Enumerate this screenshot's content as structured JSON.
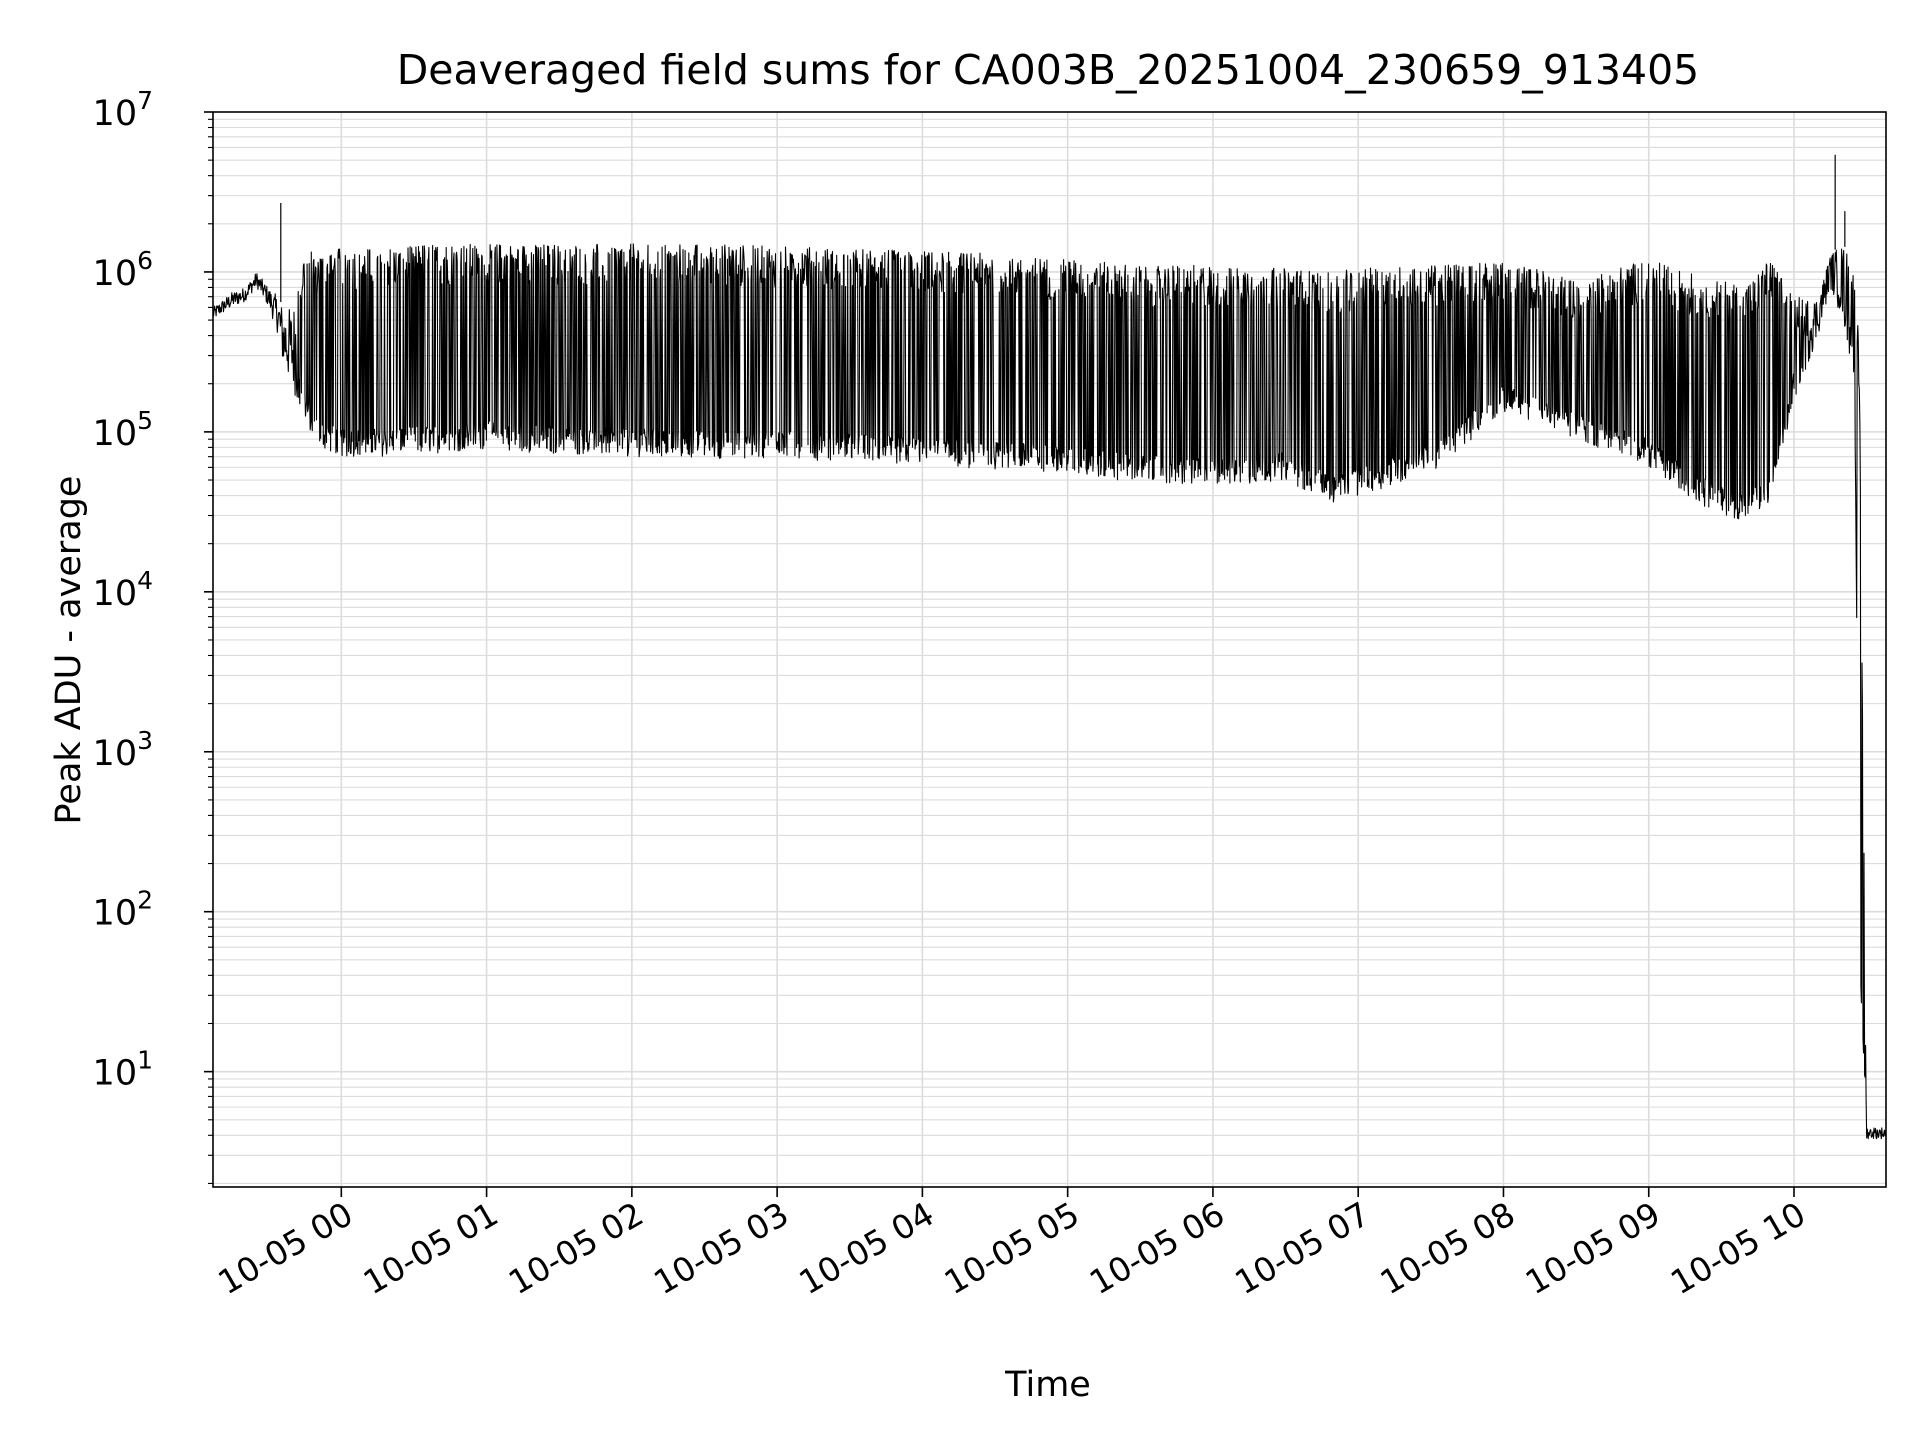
{
  "chart_data": {
    "type": "line",
    "title": "Deaveraged field sums for CA003B_20251004_230659_913405",
    "xlabel": "Time",
    "ylabel": "Peak ADU - average",
    "xscale": "time",
    "yscale": "log",
    "xlim": [
      "2025-10-04 23:07",
      "2025-10-05 10:38"
    ],
    "ylim": [
      1.9,
      10000000
    ],
    "grid": true,
    "legend": "none",
    "line_color": "#000000",
    "x_tick_labels": [
      "10-05 00",
      "10-05 01",
      "10-05 02",
      "10-05 03",
      "10-05 04",
      "10-05 05",
      "10-05 06",
      "10-05 07",
      "10-05 08",
      "10-05 09",
      "10-05 10"
    ],
    "y_tick_labels": [
      {
        "base": "10",
        "exp": "1"
      },
      {
        "base": "10",
        "exp": "2"
      },
      {
        "base": "10",
        "exp": "3"
      },
      {
        "base": "10",
        "exp": "4"
      },
      {
        "base": "10",
        "exp": "5"
      },
      {
        "base": "10",
        "exp": "6"
      },
      {
        "base": "10",
        "exp": "7"
      }
    ],
    "series": [
      {
        "x": [
          "2025-10-04 23:07",
          "2025-10-04 23:15",
          "2025-10-04 23:20",
          "2025-10-04 23:25",
          "2025-10-04 23:30",
          "2025-10-04 23:34",
          "2025-10-04 23:36",
          "2025-10-04 23:40",
          "2025-10-04 23:45",
          "2025-10-04 23:50",
          "2025-10-04 23:55",
          "2025-10-05 00:00",
          "2025-10-05 00:15",
          "2025-10-05 00:30",
          "2025-10-05 00:45",
          "2025-10-05 01:00",
          "2025-10-05 01:30",
          "2025-10-05 02:00",
          "2025-10-05 02:30",
          "2025-10-05 03:00",
          "2025-10-05 03:30",
          "2025-10-05 04:00",
          "2025-10-05 04:30",
          "2025-10-05 05:00",
          "2025-10-05 05:30",
          "2025-10-05 06:00",
          "2025-10-05 06:30",
          "2025-10-05 06:50",
          "2025-10-05 07:00",
          "2025-10-05 07:30",
          "2025-10-05 08:00",
          "2025-10-05 08:30",
          "2025-10-05 09:00",
          "2025-10-05 09:15",
          "2025-10-05 09:30",
          "2025-10-05 09:40",
          "2025-10-05 09:50",
          "2025-10-05 10:00",
          "2025-10-05 10:10",
          "2025-10-05 10:15",
          "2025-10-05 10:20",
          "2025-10-05 10:25",
          "2025-10-05 10:27",
          "2025-10-05 10:30",
          "2025-10-05 10:38"
        ],
        "low": [
          500000,
          600000,
          650000,
          800000,
          600000,
          400000,
          250000,
          180000,
          120000,
          80000,
          75000,
          70000,
          70000,
          72000,
          75000,
          78000,
          72000,
          70000,
          68000,
          68000,
          65000,
          62000,
          58000,
          55000,
          48000,
          45000,
          50000,
          35000,
          40000,
          55000,
          130000,
          90000,
          60000,
          40000,
          30000,
          28000,
          35000,
          150000,
          400000,
          800000,
          500000,
          200000,
          50,
          3.8,
          3.8
        ],
        "high": [
          600000,
          750000,
          800000,
          1000000,
          800000,
          700000,
          600000,
          600000,
          1400000,
          1300000,
          1400000,
          1400000,
          1400000,
          1500000,
          1500000,
          1500000,
          1500000,
          1500000,
          1500000,
          1450000,
          1400000,
          1350000,
          1300000,
          1200000,
          1100000,
          1100000,
          1050000,
          1000000,
          1050000,
          1100000,
          1200000,
          900000,
          1200000,
          1000000,
          900000,
          800000,
          1200000,
          700000,
          700000,
          1300000,
          1500000,
          1200000,
          300000,
          4.5,
          4.5
        ]
      }
    ],
    "spikes": [
      {
        "x": "2025-10-04 23:35",
        "y": 2700000
      },
      {
        "x": "2025-10-05 10:17",
        "y": 5400000
      },
      {
        "x": "2025-10-05 10:21",
        "y": 2400000
      }
    ]
  }
}
